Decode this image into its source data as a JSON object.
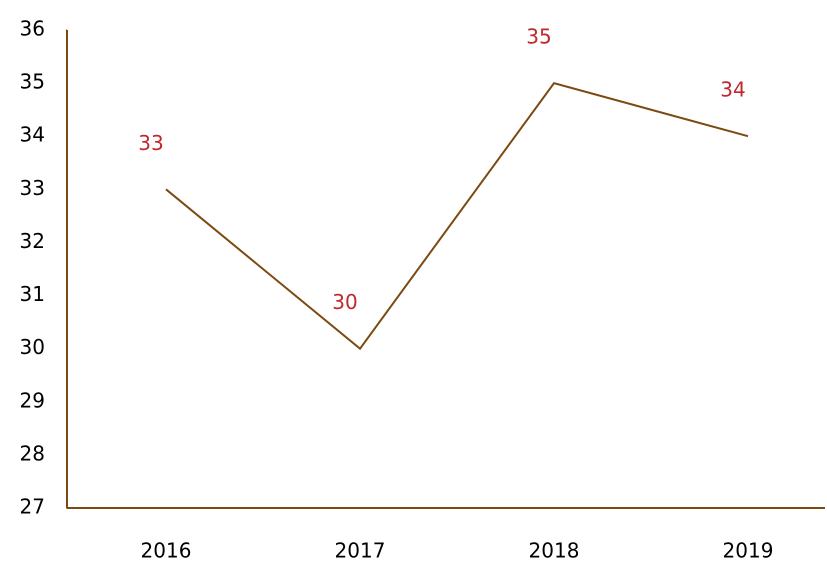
{
  "chart_data": {
    "type": "line",
    "categories": [
      "2016",
      "2017",
      "2018",
      "2019"
    ],
    "series": [
      {
        "name": null,
        "color": "#7b4a12",
        "values": [
          33,
          30,
          35,
          34
        ]
      }
    ],
    "label_color": "#c0282d",
    "ylim": [
      27,
      36
    ],
    "yticks": [
      27,
      28,
      29,
      30,
      31,
      32,
      33,
      34,
      35,
      36
    ],
    "grid": false
  }
}
